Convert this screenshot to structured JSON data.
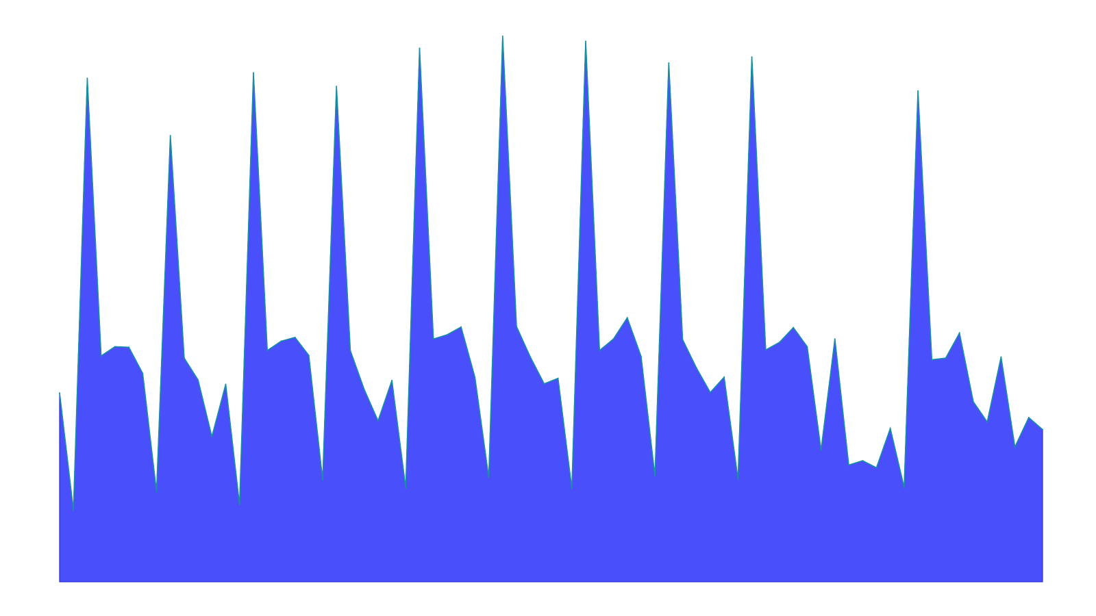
{
  "chart_data": {
    "type": "area",
    "x": [
      0,
      1,
      2,
      3,
      4,
      5,
      6,
      7,
      8,
      9,
      10,
      11,
      12,
      13,
      14,
      15,
      16,
      17,
      18,
      19,
      20,
      21,
      22,
      23,
      24,
      25,
      26,
      27,
      28,
      29,
      30,
      31,
      32,
      33,
      34,
      35,
      36,
      37,
      38,
      39,
      40,
      41,
      42,
      43,
      44,
      45,
      46,
      47,
      48,
      49,
      50,
      51,
      52,
      53,
      54,
      55,
      56,
      57,
      58,
      59,
      60,
      61,
      62,
      63,
      64,
      65,
      66,
      67,
      68,
      69,
      70,
      71
    ],
    "series": [
      {
        "values": [
          34.6,
          13.1,
          92.3,
          41.4,
          43.1,
          43.0,
          38.2,
          16.5,
          81.8,
          41.0,
          37.0,
          26.6,
          36.2,
          14.1,
          93.3,
          42.4,
          44.1,
          44.8,
          41.5,
          18.7,
          90.8,
          42.4,
          35.3,
          29.5,
          36.9,
          17.2,
          97.8,
          44.5,
          45.3,
          46.7,
          37.5,
          19.1,
          100,
          46.8,
          41.2,
          36.3,
          37.3,
          17.1,
          99.1,
          42.4,
          44.5,
          48.4,
          41.3,
          19.4,
          95.1,
          44.4,
          39.2,
          34.7,
          37.5,
          18.8,
          96.2,
          42.5,
          43.9,
          46.6,
          43.1,
          24.1,
          44.5,
          21.4,
          22.2,
          20.9,
          28.1,
          17.3,
          90.0,
          40.7,
          41.0,
          45.6,
          33.0,
          29.3,
          41.2,
          24.7,
          30.1,
          27.9
        ]
      }
    ],
    "fill_color": "#4a4ffc",
    "edge_color": "#1a8fa0",
    "frame_color": "#2d2dd6",
    "ylim": [
      0,
      100
    ],
    "grid": false,
    "title": "",
    "xlabel": "",
    "ylabel": ""
  }
}
